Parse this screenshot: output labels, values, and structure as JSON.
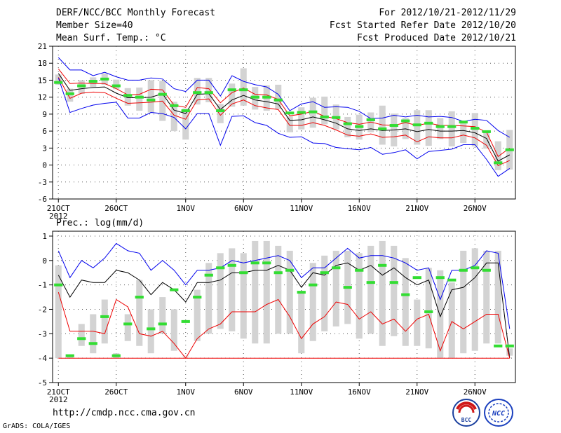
{
  "header": {
    "title": "DERF/NCC/BCC Monthly Forecast",
    "member_size": "Member Size=40",
    "variable": "Mean Surf. Temp.: °C",
    "period": "For 2012/10/21-2012/11/29",
    "started": "Fcst Started Refer Date 2012/10/20",
    "produced": "Fcst Produced Date 2012/10/21"
  },
  "footer": {
    "url": "http://cmdp.ncc.cma.gov.cn",
    "grads": "GrADS: COLA/IGES"
  },
  "logos": {
    "bcc": "BCC",
    "ncc": "NCC"
  },
  "colors": {
    "box": "#d3d3d3",
    "median": "#33dd33",
    "upper": "#0000ee",
    "mean": "#000000",
    "lower": "#ee0000",
    "upper_temp_red": "#ee0000"
  },
  "chart_data": [
    {
      "type": "line",
      "name": "temperature",
      "title": "Mean Surf. Temp.: °C",
      "ylim": [
        -6,
        21
      ],
      "yticks": [
        -6,
        -3,
        0,
        3,
        6,
        9,
        12,
        15,
        18,
        21
      ],
      "ytick_labels": [
        "-6",
        "-3",
        "0",
        "3",
        "6",
        "9",
        "12",
        "15",
        "18",
        "21"
      ],
      "xlim": [
        0.5,
        40.5
      ],
      "xticks": [
        1,
        6,
        12,
        17,
        22,
        27,
        32,
        37
      ],
      "xtick_labels": [
        "21OCT",
        "26OCT",
        "1NOV",
        "6NOV",
        "11NOV",
        "16NOV",
        "21NOV",
        "26NOV"
      ],
      "year_label": "2012",
      "days": [
        1,
        2,
        3,
        4,
        5,
        6,
        7,
        8,
        9,
        10,
        11,
        12,
        13,
        14,
        15,
        16,
        17,
        18,
        19,
        20,
        21,
        22,
        23,
        24,
        25,
        26,
        27,
        28,
        29,
        30,
        31,
        32,
        33,
        34,
        35,
        36,
        37,
        38,
        39,
        40
      ],
      "series": [
        {
          "name": "ensemble max",
          "color": "#0000ee",
          "values": [
            19,
            16.8,
            16.8,
            15.8,
            16.4,
            15.6,
            15,
            15,
            15.4,
            15.2,
            13.5,
            13,
            15,
            15,
            12.2,
            15.8,
            14.8,
            14.2,
            13.8,
            12.5,
            9.6,
            10.8,
            11.2,
            10.2,
            10.3,
            10.2,
            9.5,
            8.2,
            8.3,
            8.8,
            8.5,
            8.8,
            8.5,
            8.6,
            8.4,
            7.7,
            8.1,
            7.9,
            6.1,
            4.9
          ]
        },
        {
          "name": "upper (red)",
          "color": "#ee0000",
          "values": [
            17,
            14.4,
            14.5,
            14.4,
            14.4,
            13.5,
            12.4,
            12.5,
            13.4,
            13.3,
            10.6,
            10.2,
            13.7,
            13.5,
            11,
            12.8,
            13.6,
            12.5,
            12.4,
            11.6,
            8.7,
            9,
            9.5,
            8.6,
            8.2,
            7.5,
            7.2,
            7.6,
            7.1,
            7,
            7.5,
            7,
            7.4,
            7,
            7,
            6.9,
            6.8,
            5.8,
            1.5,
            3
          ]
        },
        {
          "name": "ensemble mean",
          "color": "#000000",
          "values": [
            16.2,
            13.2,
            13.5,
            13.7,
            13.8,
            12.7,
            11.9,
            11.9,
            12,
            12.6,
            9.7,
            9.1,
            12.5,
            12.6,
            9.8,
            11.5,
            12.3,
            11.5,
            11.2,
            10.8,
            7.9,
            8,
            8.5,
            8,
            7.4,
            6.4,
            6.1,
            6.4,
            6.1,
            6.2,
            6.4,
            5.9,
            6.3,
            6,
            6,
            6.1,
            5.7,
            4.7,
            0.7,
            1.8
          ]
        },
        {
          "name": "lower (red)",
          "color": "#ee0000",
          "values": [
            15.5,
            11.8,
            12.7,
            12.9,
            12.8,
            11.8,
            10.9,
            11,
            11.1,
            11.3,
            8.8,
            8.1,
            11.5,
            11.7,
            8.8,
            10.8,
            11.5,
            10.5,
            10.1,
            9.8,
            7,
            7,
            7.5,
            7,
            6.2,
            5.3,
            5.1,
            5.5,
            4.9,
            5,
            5.3,
            4.1,
            5,
            4.8,
            4.8,
            5.3,
            4.8,
            3.5,
            -0.1,
            0.8
          ]
        },
        {
          "name": "ensemble min",
          "color": "#0000ee",
          "values": [
            15.4,
            9.3,
            10,
            10.6,
            10.9,
            11.1,
            8.3,
            8.3,
            9.3,
            9.1,
            8.4,
            6.4,
            9.1,
            9.1,
            3.5,
            8.6,
            8.7,
            7.5,
            7,
            5.6,
            4.9,
            5,
            3.9,
            3.8,
            3.1,
            2.9,
            2.7,
            3.1,
            1.9,
            2.2,
            2.7,
            1.1,
            2.4,
            2.6,
            2.8,
            3.6,
            3.6,
            1,
            -2,
            -0.6
          ]
        }
      ],
      "boxes_low": [
        14.2,
        11.2,
        12.6,
        13.8,
        14.2,
        13.4,
        10.5,
        9.6,
        9.3,
        7.8,
        6,
        4.5,
        10.7,
        11.1,
        7.4,
        10.3,
        10.5,
        9.8,
        9.6,
        9.9,
        5.8,
        6.3,
        6.6,
        7.2,
        6.3,
        4.9,
        4.5,
        5.8,
        3.6,
        3.3,
        4.6,
        3.6,
        3.4,
        4.6,
        3.3,
        3.9,
        3.3,
        2.9,
        -0.9,
        -0.8
      ],
      "boxes_high": [
        16,
        13.5,
        15,
        15.5,
        16.2,
        15.1,
        13.6,
        13.7,
        15,
        14.9,
        11.2,
        10,
        15.4,
        15.4,
        10.8,
        14.4,
        17.1,
        13.8,
        14.1,
        14.2,
        8.6,
        10.2,
        11.9,
        12.1,
        10.7,
        8.5,
        8.9,
        9.3,
        10.5,
        9.1,
        8.3,
        9.7,
        9.7,
        8.3,
        9.5,
        7.7,
        9.2,
        5.9,
        4.2,
        6.2
      ],
      "median": [
        14.6,
        12.6,
        14,
        14.8,
        15.2,
        14,
        12.3,
        12,
        11.5,
        12.5,
        10.5,
        9.6,
        12.8,
        12.8,
        9.6,
        13.3,
        13.3,
        12,
        12,
        11.5,
        9.2,
        9.3,
        9.4,
        8.5,
        8.4,
        7.3,
        6.8,
        8,
        6.4,
        7,
        7.8,
        7.1,
        7.4,
        6.8,
        6.8,
        7.6,
        6.5,
        5.9,
        0.4,
        2.7
      ]
    },
    {
      "type": "line",
      "name": "precipitation",
      "title": "Prec.: log(mm/d)",
      "ylim": [
        -5,
        1.2
      ],
      "yticks": [
        -5,
        -4,
        -3,
        -2,
        -1,
        0,
        1
      ],
      "ytick_labels": [
        "-5",
        "-4",
        "-3",
        "-2",
        "-1",
        "0",
        "1"
      ],
      "xlim": [
        0.5,
        40.5
      ],
      "xticks": [
        1,
        6,
        12,
        17,
        22,
        27,
        32,
        37
      ],
      "xtick_labels": [
        "21OCT",
        "26OCT",
        "1NOV",
        "6NOV",
        "11NOV",
        "16NOV",
        "21NOV",
        "26NOV"
      ],
      "year_label": "2012",
      "days": [
        1,
        2,
        3,
        4,
        5,
        6,
        7,
        8,
        9,
        10,
        11,
        12,
        13,
        14,
        15,
        16,
        17,
        18,
        19,
        20,
        21,
        22,
        23,
        24,
        25,
        26,
        27,
        28,
        29,
        30,
        31,
        32,
        33,
        34,
        35,
        36,
        37,
        38,
        39,
        40
      ],
      "series": [
        {
          "name": "ensemble max",
          "color": "#0000ee",
          "values": [
            0.4,
            -0.7,
            0,
            -0.3,
            0.1,
            0.7,
            0.4,
            0.3,
            -0.4,
            0,
            -0.4,
            -1,
            -0.4,
            -0.4,
            -0.3,
            0,
            -0.1,
            0,
            0.1,
            0.2,
            0,
            -0.7,
            -0.3,
            -0.3,
            0.1,
            0.5,
            0.1,
            0.2,
            0.2,
            0.1,
            -0.1,
            -0.4,
            -0.3,
            -1.6,
            -0.4,
            -0.4,
            -0.2,
            0.4,
            0.3,
            -2.8
          ]
        },
        {
          "name": "ensemble mean",
          "color": "#000000",
          "values": [
            -0.6,
            -1.5,
            -0.8,
            -0.9,
            -0.9,
            -0.4,
            -0.5,
            -0.8,
            -1.4,
            -0.9,
            -1.2,
            -1.7,
            -0.9,
            -0.9,
            -0.8,
            -0.5,
            -0.5,
            -0.4,
            -0.4,
            -0.2,
            -0.4,
            -1.1,
            -0.5,
            -0.6,
            -0.2,
            -0.1,
            -0.4,
            -0.2,
            -0.6,
            -0.3,
            -0.7,
            -1,
            -0.8,
            -2.3,
            -1.2,
            -1.1,
            -0.7,
            -0.1,
            -0.1,
            -4
          ]
        },
        {
          "name": "lower (red)",
          "color": "#ee0000",
          "values": [
            -1.3,
            -2.9,
            -2.9,
            -2.9,
            -3,
            -1.6,
            -1.9,
            -3,
            -3.1,
            -2.9,
            -3.4,
            -4,
            -3.2,
            -2.8,
            -2.6,
            -2.1,
            -2.1,
            -2.1,
            -1.8,
            -1.6,
            -2.3,
            -3.2,
            -2.6,
            -2.3,
            -1.7,
            -1.8,
            -2.4,
            -2.1,
            -2.6,
            -2.4,
            -2.9,
            -2.4,
            -2.2,
            -3.7,
            -2.5,
            -2.8,
            -2.5,
            -2.2,
            -2.2,
            -4
          ]
        },
        {
          "name": "floor",
          "color": "#ee0000",
          "values": [
            -4,
            -4,
            -4,
            -4,
            -4,
            -4,
            -4,
            -4,
            -4,
            -4,
            -4,
            -4,
            -4,
            -4,
            -4,
            -4,
            -4,
            -4,
            -4,
            -4,
            -4,
            -4,
            -4,
            -4,
            -4,
            -4,
            -4,
            -4,
            -4,
            -4,
            -4,
            -4,
            -4,
            -4,
            -4,
            -4,
            -4,
            -4,
            -4,
            -4
          ]
        }
      ],
      "boxes_low": [
        -4,
        -4,
        -3.5,
        -3.8,
        -3.4,
        -4,
        -3.3,
        -3.5,
        -3.8,
        -3,
        -3.7,
        -3.9,
        -3.3,
        -3,
        -2.8,
        -2.9,
        -3.2,
        -3.4,
        -3.4,
        -3,
        -3,
        -3.8,
        -3.3,
        -2.9,
        -2.7,
        -2.6,
        -3.2,
        -3,
        -3.5,
        -3.1,
        -3.5,
        -3.5,
        -3.6,
        -4,
        -4,
        -3.8,
        -3.7,
        -3.4,
        -3.4,
        -3.9
      ],
      "boxes_high": [
        -0.2,
        -3.9,
        -2.6,
        -2.2,
        -1.6,
        -3.8,
        -2.2,
        -0.8,
        -2,
        -1.5,
        -2,
        -3.9,
        -1.2,
        -0.1,
        0.3,
        0.5,
        0.3,
        0.8,
        0.8,
        0.6,
        0.4,
        -1.3,
        -0.1,
        0.2,
        0.4,
        0.4,
        0.3,
        0.6,
        0.8,
        0.6,
        0.1,
        -1.6,
        -0.3,
        -0.4,
        -0.9,
        0.4,
        0.5,
        0.4,
        0.4,
        -3.6
      ],
      "median": [
        -1,
        -3.9,
        -3.2,
        -3.4,
        -2.3,
        -3.9,
        -2.6,
        -1.5,
        -2.8,
        -2.6,
        -1.2,
        -2.5,
        -1.5,
        -0.6,
        -0.3,
        -0.2,
        -0.5,
        -0.1,
        -0.1,
        -0.5,
        -0.4,
        -1.3,
        -1,
        -0.5,
        -0.3,
        -1.1,
        -0.4,
        -0.9,
        -0.2,
        -0.9,
        -1.4,
        -0.7,
        -2.1,
        -0.7,
        -0.8,
        -0.4,
        -0.3,
        -0.4,
        -3.5,
        -3.5
      ]
    }
  ]
}
